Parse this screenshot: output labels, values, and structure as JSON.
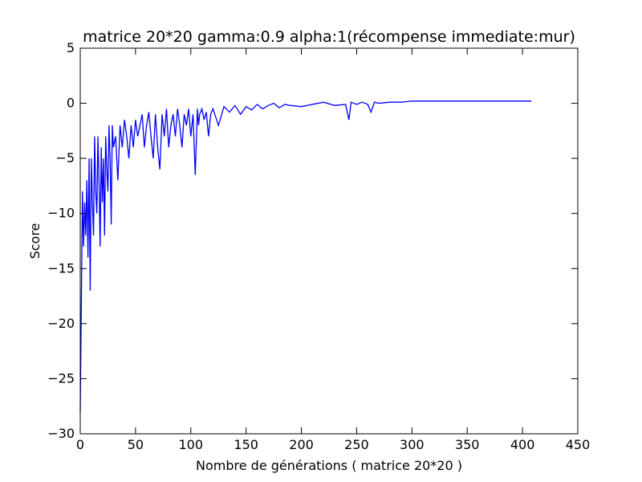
{
  "chart_data": {
    "type": "line",
    "title": "matrice 20*20 gamma:0.9 alpha:1(récompense immediate:mur)",
    "xlabel": "Nombre de générations ( matrice 20*20 )",
    "ylabel": "Score",
    "xlim": [
      0,
      450
    ],
    "ylim": [
      -30,
      5
    ],
    "xticks": [
      "0",
      "50",
      "100",
      "150",
      "200",
      "250",
      "300",
      "350",
      "400",
      "450"
    ],
    "yticks": [
      "5",
      "0",
      "−5",
      "−10",
      "−15",
      "−20",
      "−25",
      "−30"
    ],
    "grid": false,
    "line_color": "#0000ff",
    "series": [
      {
        "x": [
          0,
          1,
          2,
          3,
          4,
          5,
          6,
          7,
          8,
          9,
          10,
          11,
          12,
          13,
          14,
          15,
          16,
          17,
          18,
          19,
          20,
          21,
          22,
          23,
          24,
          25,
          26,
          27,
          28,
          29,
          30,
          32,
          34,
          36,
          38,
          40,
          42,
          44,
          46,
          48,
          50,
          52,
          54,
          56,
          58,
          60,
          62,
          64,
          66,
          68,
          70,
          72,
          74,
          76,
          78,
          80,
          82,
          84,
          86,
          88,
          90,
          92,
          94,
          96,
          98,
          100,
          102,
          104,
          106,
          107,
          108,
          110,
          112,
          114,
          116,
          118,
          120,
          125,
          130,
          135,
          140,
          145,
          150,
          155,
          160,
          165,
          170,
          175,
          180,
          185,
          190,
          200,
          210,
          220,
          230,
          240,
          243,
          245,
          250,
          255,
          260,
          263,
          266,
          270,
          280,
          290,
          300,
          310,
          320,
          350,
          380,
          408
        ],
        "y": [
          -28,
          -18,
          -8,
          -13,
          -9,
          -12,
          -7,
          -14,
          -5,
          -17,
          -5,
          -9,
          -12,
          -3,
          -8,
          -10,
          -3,
          -7,
          -13,
          -4,
          -9,
          -5,
          -12,
          -3,
          -6,
          -8,
          -2,
          -5,
          -11,
          -2,
          -4,
          -3,
          -7,
          -2,
          -4,
          -1.5,
          -3,
          -5,
          -2,
          -4,
          -1.5,
          -3,
          -2,
          -1,
          -4,
          -2,
          -0.8,
          -3,
          -5,
          -1,
          -4,
          -6,
          -1,
          -3,
          -0.5,
          -4,
          -2,
          -1,
          -3,
          -0.5,
          -2,
          -4,
          -1,
          -2,
          -0.5,
          -3,
          -1,
          -6.5,
          -0.5,
          -2,
          -1,
          -0.5,
          -1.5,
          -0.8,
          -3,
          -1,
          -0.5,
          -2,
          -0.3,
          -0.8,
          -0.2,
          -1,
          -0.3,
          -0.6,
          -0.1,
          -0.5,
          -0.2,
          0,
          -0.4,
          -0.1,
          -0.2,
          -0.3,
          -0.1,
          0.1,
          -0.2,
          -0.1,
          -1.5,
          0.1,
          -0.1,
          0.1,
          -0.1,
          -0.8,
          0.1,
          0,
          0.1,
          0.1,
          0.2,
          0.2,
          0.2,
          0.2,
          0.2,
          0.2
        ]
      }
    ]
  }
}
